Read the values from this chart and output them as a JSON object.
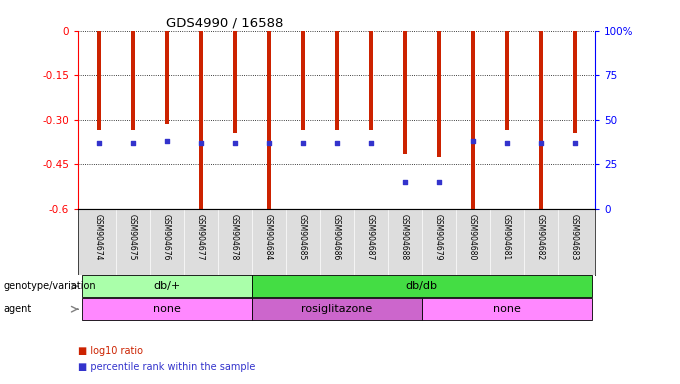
{
  "title": "GDS4990 / 16588",
  "samples": [
    "GSM904674",
    "GSM904675",
    "GSM904676",
    "GSM904677",
    "GSM904678",
    "GSM904684",
    "GSM904685",
    "GSM904686",
    "GSM904687",
    "GSM904688",
    "GSM904679",
    "GSM904680",
    "GSM904681",
    "GSM904682",
    "GSM904683"
  ],
  "log10_ratio": [
    -0.335,
    -0.335,
    -0.315,
    -0.6,
    -0.345,
    -0.6,
    -0.335,
    -0.335,
    -0.335,
    -0.415,
    -0.425,
    -0.6,
    -0.335,
    -0.6,
    -0.345
  ],
  "percentile_rank": [
    37,
    37,
    38,
    37,
    37,
    37,
    37,
    37,
    37,
    15,
    15,
    38,
    37,
    37,
    37
  ],
  "bar_color": "#cc2200",
  "dot_color": "#3333cc",
  "ylim_left": [
    -0.6,
    0.0
  ],
  "yticks_left": [
    0.0,
    -0.15,
    -0.3,
    -0.45,
    -0.6
  ],
  "ytick_labels_left": [
    "0",
    "-0.15",
    "-0.30",
    "-0.45",
    "-0.6"
  ],
  "ylim_right": [
    0,
    100
  ],
  "yticks_right": [
    0,
    25,
    50,
    75,
    100
  ],
  "ytick_labels_right": [
    "0",
    "25",
    "50",
    "75",
    "100%"
  ],
  "genotype_groups": [
    {
      "label": "db/+",
      "start": 0,
      "end": 5,
      "color": "#aaffaa"
    },
    {
      "label": "db/db",
      "start": 5,
      "end": 15,
      "color": "#44dd44"
    }
  ],
  "agent_groups": [
    {
      "label": "none",
      "start": 0,
      "end": 5,
      "color": "#ff88ff"
    },
    {
      "label": "rosiglitazone",
      "start": 5,
      "end": 10,
      "color": "#cc66cc"
    },
    {
      "label": "none",
      "start": 10,
      "end": 15,
      "color": "#ff88ff"
    }
  ],
  "genotype_label": "genotype/variation",
  "agent_label": "agent",
  "legend_items": [
    {
      "color": "#cc2200",
      "label": "log10 ratio"
    },
    {
      "color": "#3333cc",
      "label": "percentile rank within the sample"
    }
  ],
  "background_color": "#ffffff",
  "sample_area_color": "#dddddd",
  "bar_width": 0.12
}
